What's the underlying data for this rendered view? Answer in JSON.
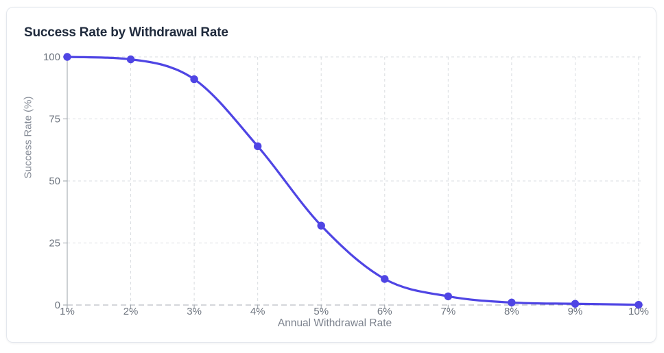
{
  "card": {
    "title": "Success Rate by Withdrawal Rate"
  },
  "chart_data": {
    "type": "line",
    "title": "Success Rate by Withdrawal Rate",
    "xlabel": "Annual Withdrawal Rate",
    "ylabel": "Success Rate (%)",
    "categories": [
      "1%",
      "2%",
      "3%",
      "4%",
      "5%",
      "6%",
      "7%",
      "8%",
      "9%",
      "10%"
    ],
    "series": [
      {
        "name": "Success Rate",
        "values": [
          100,
          99,
          91,
          64,
          32,
          10.5,
          3.5,
          1,
          0.5,
          0.1
        ]
      }
    ],
    "ylim": [
      0,
      100
    ],
    "yticks": [
      0,
      25,
      50,
      75,
      100
    ],
    "grid": true,
    "grid_style": "dashed",
    "legend": false,
    "curve": "monotone",
    "colors": {
      "line": "#4f45e4",
      "point": "#4f45e4",
      "gridline": "#d9dce0",
      "axis_line": "#9aa0a7",
      "baseline": "#a8aeb5",
      "tick_text": "#6f7680",
      "title_text": "#1f2a3c",
      "card_border": "#e3e7ed",
      "background": "#ffffff"
    }
  }
}
